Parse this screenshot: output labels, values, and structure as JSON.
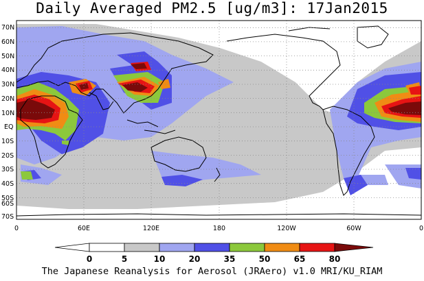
{
  "title": "Daily Averaged PM2.5 [ug/m3]: 17Jan2015",
  "footer": "The Japanese Reanalysis for Aerosol (JRAero) v1.0 MRI/KU_RIAM",
  "colors": {
    "c0": "#ffffff",
    "c5": "#c8c8c8",
    "c10": "#a0a6f0",
    "c20": "#5050e6",
    "c35": "#8cc83c",
    "c50": "#f08c14",
    "c65": "#e61414",
    "c80": "#7a0a0a",
    "land": "#000000"
  },
  "lat_labels": [
    "70N",
    "60N",
    "50N",
    "40N",
    "30N",
    "20N",
    "10N",
    "EQ",
    "10S",
    "20S",
    "30S",
    "40S",
    "50S",
    "60S",
    "70S"
  ],
  "lon_labels": [
    "0",
    "60E",
    "120E",
    "180",
    "120W",
    "60W",
    "0"
  ],
  "colorbar": {
    "thresholds": [
      "0",
      "5",
      "10",
      "20",
      "35",
      "50",
      "65",
      "80"
    ],
    "bins": [
      "<0",
      "0-5",
      "5-10",
      "10-20",
      "20-35",
      "35-50",
      "50-65",
      "65-80",
      ">80"
    ]
  }
}
